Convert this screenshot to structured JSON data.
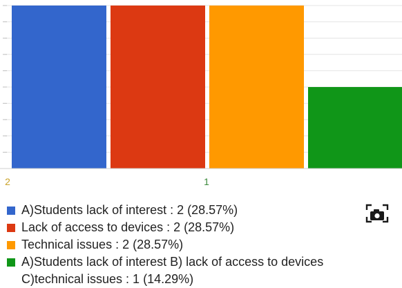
{
  "chart_data": {
    "type": "bar",
    "title": "",
    "xlabel": "",
    "ylabel": "",
    "categories": [
      "1"
    ],
    "series": [
      {
        "name": "A)Students lack of interest : 2 (28.57%)",
        "value": 2,
        "percent": 28.57,
        "color": "#3366cc"
      },
      {
        "name": "Lack of access to devices : 2 (28.57%)",
        "value": 2,
        "percent": 28.57,
        "color": "#dc3912"
      },
      {
        "name": "Technical issues : 2 (28.57%)",
        "value": 2,
        "percent": 28.57,
        "color": "#ff9900"
      },
      {
        "name": "A)Students lack of interest B) lack of access to devices C)technical issues : 1 (14.29%)",
        "value": 1,
        "percent": 14.29,
        "color": "#109618"
      }
    ],
    "ylim": [
      0,
      2
    ],
    "y_tick_labels": [
      "2"
    ],
    "grid": true,
    "legend_position": "bottom"
  },
  "toolbar": {
    "camera_icon": "camera-icon"
  }
}
